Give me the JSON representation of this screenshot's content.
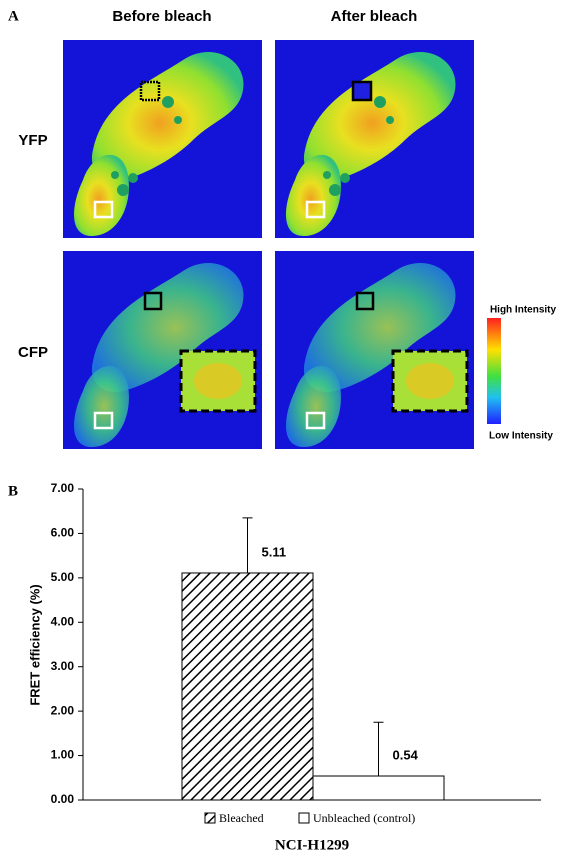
{
  "figure": {
    "panel_a": {
      "label": "A",
      "columns": [
        "Before bleach",
        "After bleach"
      ],
      "rows": [
        "YFP",
        "CFP"
      ],
      "colorbar": {
        "high": "High Intensity",
        "low": "Low Intensity"
      }
    },
    "panel_b": {
      "label": "B"
    }
  },
  "chart_data": {
    "type": "bar",
    "y_label": "FRET efficiency (%)",
    "x_label": "NCI-H1299",
    "series": [
      {
        "name": "Bleached",
        "color": "#000000",
        "pattern": "hatch",
        "values": [
          5.11
        ],
        "errors": [
          1.24
        ]
      },
      {
        "name": "Unbleached (control)",
        "color": "#ffffff",
        "pattern": "none",
        "values": [
          0.54
        ],
        "errors": [
          1.21
        ]
      }
    ],
    "ylim": [
      0,
      7
    ],
    "yticks": [
      {
        "value": 0,
        "label": "0.00"
      },
      {
        "value": 1,
        "label": "1.00"
      },
      {
        "value": 2,
        "label": "2.00"
      },
      {
        "value": 3,
        "label": "3.00"
      },
      {
        "value": 4,
        "label": "4.00"
      },
      {
        "value": 5,
        "label": "5.00"
      },
      {
        "value": 6,
        "label": "6.00"
      },
      {
        "value": 7,
        "label": "7.00"
      }
    ]
  }
}
